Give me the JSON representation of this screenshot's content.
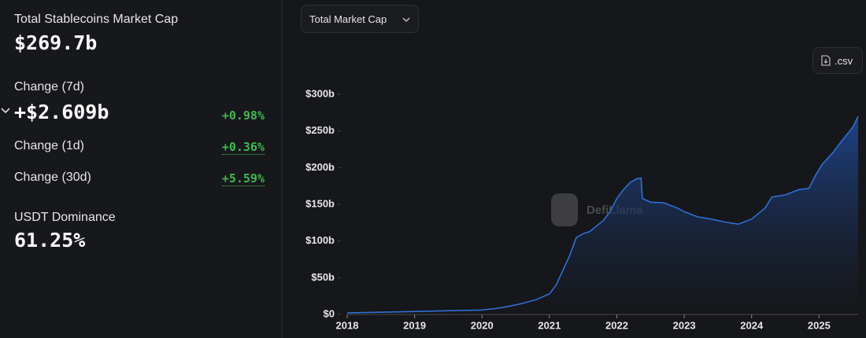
{
  "stats": {
    "title": "Total Stablecoins Market Cap",
    "value": "$269.7b",
    "change_7d": {
      "label": "Change (7d)",
      "value": "+$2.609b",
      "percent": "+0.98%"
    },
    "change_1d": {
      "label": "Change (1d)",
      "percent": "+0.36%"
    },
    "change_30d": {
      "label": "Change (30d)",
      "percent": "+5.59%"
    },
    "dominance": {
      "label": "USDT Dominance",
      "value": "61.25%"
    }
  },
  "controls": {
    "dropdown": "Total Market Cap",
    "csv": ".csv"
  },
  "watermark": "DefiLlama",
  "chart_data": {
    "type": "area",
    "color": "#2f6fd6",
    "x": [
      2018.0,
      2018.5,
      2019.0,
      2019.5,
      2020.0,
      2020.2,
      2020.4,
      2020.6,
      2020.8,
      2021.0,
      2021.1,
      2021.2,
      2021.3,
      2021.4,
      2021.5,
      2021.6,
      2021.8,
      2021.9,
      2022.0,
      2022.1,
      2022.2,
      2022.3,
      2022.36,
      2022.38,
      2022.5,
      2022.7,
      2022.9,
      2023.0,
      2023.2,
      2023.4,
      2023.6,
      2023.8,
      2024.0,
      2024.2,
      2024.3,
      2024.5,
      2024.7,
      2024.85,
      2024.95,
      2025.05,
      2025.2,
      2025.35,
      2025.5,
      2025.58
    ],
    "values": [
      2,
      3,
      4,
      5,
      6,
      8,
      11,
      15,
      20,
      28,
      40,
      60,
      80,
      105,
      110,
      113,
      128,
      140,
      158,
      170,
      180,
      185,
      186,
      158,
      153,
      152,
      145,
      140,
      133,
      130,
      126,
      123,
      130,
      145,
      160,
      163,
      170,
      172,
      190,
      205,
      220,
      238,
      255,
      270
    ],
    "xlim": [
      2018.0,
      2025.58
    ],
    "xticks": [
      2018,
      2019,
      2020,
      2021,
      2022,
      2023,
      2024,
      2025
    ],
    "ylim": [
      0,
      300
    ],
    "yticks": [
      {
        "value": 0,
        "label": "$0"
      },
      {
        "value": 50,
        "label": "$50b"
      },
      {
        "value": 100,
        "label": "$100b"
      },
      {
        "value": 150,
        "label": "$150b"
      },
      {
        "value": 200,
        "label": "$200b"
      },
      {
        "value": 250,
        "label": "$250b"
      },
      {
        "value": 300,
        "label": "$300b"
      }
    ]
  }
}
